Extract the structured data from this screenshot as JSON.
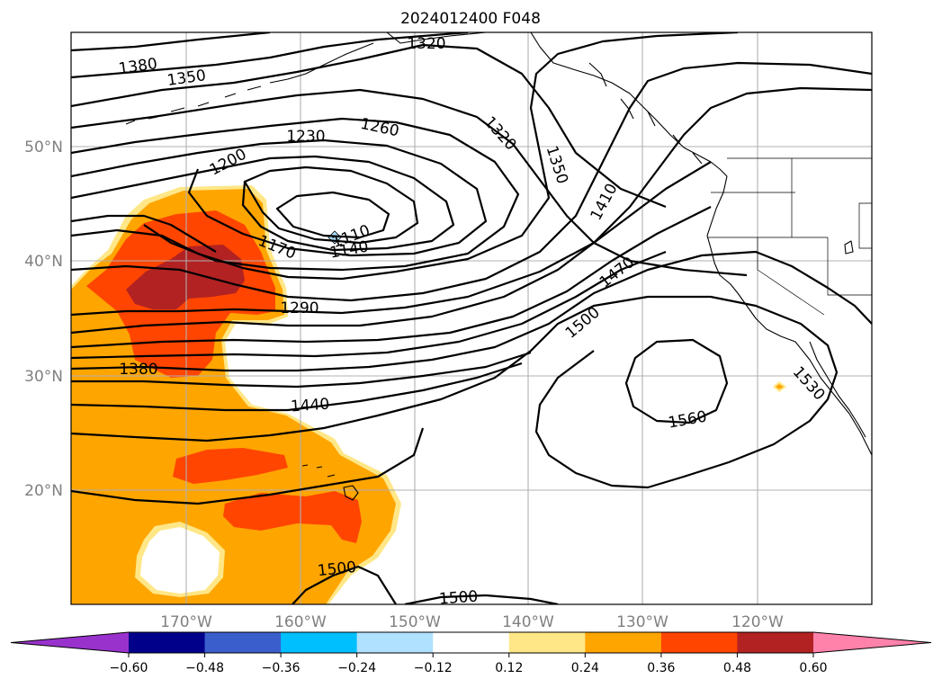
{
  "title": "2024012400 F048",
  "colors": {
    "levels": [
      "#9932cc",
      "#00008b",
      "#3a5fcd",
      "#00bfff",
      "#b0e2ff",
      "#ffffff",
      "#ffe787",
      "#ffa500",
      "#ff4500",
      "#b22222",
      "#ff82ab"
    ],
    "contour": "#000000",
    "grid": "#b0b0b0",
    "tick_label": "#808080"
  },
  "colorbar": {
    "ticks": [
      "−0.60",
      "−0.48",
      "−0.36",
      "−0.24",
      "−0.12",
      "0.12",
      "0.24",
      "0.36",
      "0.48",
      "0.60"
    ],
    "extend": "both"
  },
  "map": {
    "lon_range": [
      -180,
      -110
    ],
    "lat_range": [
      10,
      60
    ],
    "lon_labels": [
      "170°W",
      "160°W",
      "150°W",
      "140°W",
      "130°W",
      "120°W"
    ],
    "lat_labels": [
      "50°N",
      "40°N",
      "30°N",
      "20°N"
    ],
    "contour_labels": [
      {
        "text": "1380",
        "id": "c1380a"
      },
      {
        "text": "1350",
        "id": "c1350a"
      },
      {
        "text": "1320",
        "id": "c1320a"
      },
      {
        "text": "1320",
        "id": "c1320b"
      },
      {
        "text": "1230",
        "id": "c1230"
      },
      {
        "text": "1260",
        "id": "c1260"
      },
      {
        "text": "1200",
        "id": "c1200"
      },
      {
        "text": "1350",
        "id": "c1350b"
      },
      {
        "text": "1170",
        "id": "c1170"
      },
      {
        "text": "1110",
        "id": "c1110"
      },
      {
        "text": "1140",
        "id": "c1140"
      },
      {
        "text": "1410",
        "id": "c1410"
      },
      {
        "text": "1290",
        "id": "c1290"
      },
      {
        "text": "1470",
        "id": "c1470"
      },
      {
        "text": "1500",
        "id": "c1500a"
      },
      {
        "text": "1380",
        "id": "c1380b"
      },
      {
        "text": "1440",
        "id": "c1440"
      },
      {
        "text": "1530",
        "id": "c1530"
      },
      {
        "text": "1560",
        "id": "c1560"
      },
      {
        "text": "1500",
        "id": "c1500b"
      },
      {
        "text": "1500",
        "id": "c1500c"
      }
    ]
  }
}
